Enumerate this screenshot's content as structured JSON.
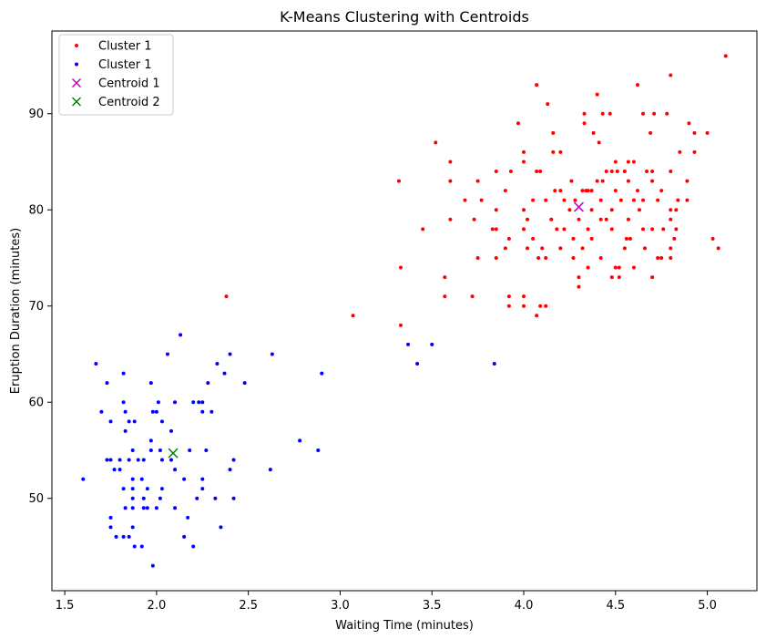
{
  "chart_data": {
    "type": "scatter",
    "title": "K-Means Clustering with Centroids",
    "xlabel": "Waiting Time (minutes)",
    "ylabel": "Eruption Duration (minutes)",
    "xlim": [
      1.43,
      5.27
    ],
    "ylim": [
      40.4,
      98.6
    ],
    "xticks": [
      1.5,
      2.0,
      2.5,
      3.0,
      3.5,
      4.0,
      4.5,
      5.0
    ],
    "xtick_labels": [
      "1.5",
      "2.0",
      "2.5",
      "3.0",
      "3.5",
      "4.0",
      "4.5",
      "5.0"
    ],
    "yticks": [
      50,
      60,
      70,
      80,
      90
    ],
    "ytick_labels": [
      "50",
      "60",
      "70",
      "80",
      "90"
    ],
    "grid": false,
    "legend_position": "top-left",
    "legend": [
      {
        "label": "Cluster 1",
        "marker": "dot",
        "color": "#ff0000"
      },
      {
        "label": "Cluster 1",
        "marker": "dot",
        "color": "#0000ff"
      },
      {
        "label": "Centroid 1",
        "marker": "x",
        "color": "#bf00bf"
      },
      {
        "label": "Centroid 2",
        "marker": "x",
        "color": "#008000"
      }
    ],
    "series": [
      {
        "name": "Cluster 1",
        "color": "#ff0000",
        "marker": "dot",
        "points": [
          [
            5.1,
            96
          ],
          [
            4.8,
            94
          ],
          [
            4.07,
            93
          ],
          [
            4.62,
            93
          ],
          [
            4.4,
            92
          ],
          [
            4.13,
            91
          ],
          [
            4.33,
            90
          ],
          [
            4.43,
            90
          ],
          [
            4.47,
            90
          ],
          [
            4.65,
            90
          ],
          [
            4.71,
            90
          ],
          [
            4.78,
            90
          ],
          [
            3.97,
            89
          ],
          [
            4.33,
            89
          ],
          [
            4.9,
            89
          ],
          [
            4.38,
            88
          ],
          [
            4.16,
            88
          ],
          [
            4.69,
            88
          ],
          [
            4.93,
            88
          ],
          [
            5.0,
            88
          ],
          [
            3.52,
            87
          ],
          [
            4.41,
            87
          ],
          [
            4.0,
            86
          ],
          [
            4.16,
            86
          ],
          [
            4.2,
            86
          ],
          [
            4.85,
            86
          ],
          [
            4.93,
            86
          ],
          [
            3.6,
            85
          ],
          [
            4.0,
            85
          ],
          [
            4.5,
            85
          ],
          [
            4.57,
            85
          ],
          [
            4.6,
            85
          ],
          [
            4.45,
            84
          ],
          [
            4.07,
            84
          ],
          [
            4.09,
            84
          ],
          [
            4.48,
            84
          ],
          [
            4.51,
            84
          ],
          [
            4.55,
            84
          ],
          [
            4.67,
            84
          ],
          [
            4.7,
            84
          ],
          [
            4.8,
            84
          ],
          [
            3.85,
            84
          ],
          [
            3.93,
            84
          ],
          [
            3.32,
            83
          ],
          [
            3.6,
            83
          ],
          [
            3.75,
            83
          ],
          [
            4.26,
            83
          ],
          [
            4.4,
            83
          ],
          [
            4.43,
            83
          ],
          [
            4.57,
            83
          ],
          [
            4.7,
            83
          ],
          [
            4.89,
            83
          ],
          [
            4.2,
            82
          ],
          [
            4.35,
            82
          ],
          [
            4.37,
            82
          ],
          [
            4.32,
            82
          ],
          [
            4.5,
            82
          ],
          [
            4.62,
            82
          ],
          [
            4.75,
            82
          ],
          [
            3.9,
            82
          ],
          [
            4.17,
            82
          ],
          [
            4.34,
            82
          ],
          [
            4.53,
            81
          ],
          [
            4.65,
            81
          ],
          [
            3.68,
            81
          ],
          [
            3.77,
            81
          ],
          [
            4.05,
            81
          ],
          [
            4.12,
            81
          ],
          [
            4.22,
            81
          ],
          [
            4.28,
            81
          ],
          [
            4.42,
            81
          ],
          [
            4.6,
            81
          ],
          [
            4.73,
            81
          ],
          [
            4.84,
            81
          ],
          [
            4.89,
            81
          ],
          [
            4.0,
            80
          ],
          [
            3.85,
            80
          ],
          [
            4.37,
            80
          ],
          [
            4.48,
            80
          ],
          [
            4.8,
            80
          ],
          [
            4.83,
            80
          ],
          [
            4.63,
            80
          ],
          [
            4.25,
            80
          ],
          [
            3.73,
            79
          ],
          [
            3.6,
            79
          ],
          [
            4.02,
            79
          ],
          [
            4.15,
            79
          ],
          [
            4.3,
            79
          ],
          [
            4.42,
            79
          ],
          [
            4.45,
            79
          ],
          [
            4.57,
            79
          ],
          [
            4.8,
            79
          ],
          [
            3.45,
            78
          ],
          [
            3.83,
            78
          ],
          [
            3.85,
            78
          ],
          [
            4.0,
            78
          ],
          [
            4.18,
            78
          ],
          [
            4.22,
            78
          ],
          [
            4.35,
            78
          ],
          [
            4.48,
            78
          ],
          [
            4.65,
            78
          ],
          [
            4.7,
            78
          ],
          [
            4.76,
            78
          ],
          [
            4.83,
            78
          ],
          [
            3.92,
            77
          ],
          [
            4.05,
            77
          ],
          [
            4.27,
            77
          ],
          [
            4.37,
            77
          ],
          [
            4.56,
            77
          ],
          [
            4.58,
            77
          ],
          [
            4.82,
            77
          ],
          [
            5.03,
            77
          ],
          [
            3.9,
            76
          ],
          [
            4.02,
            76
          ],
          [
            4.1,
            76
          ],
          [
            4.2,
            76
          ],
          [
            4.32,
            76
          ],
          [
            4.55,
            76
          ],
          [
            4.66,
            76
          ],
          [
            4.8,
            76
          ],
          [
            5.06,
            76
          ],
          [
            3.75,
            75
          ],
          [
            3.85,
            75
          ],
          [
            4.08,
            75
          ],
          [
            4.12,
            75
          ],
          [
            4.27,
            75
          ],
          [
            4.42,
            75
          ],
          [
            4.73,
            75
          ],
          [
            4.75,
            75
          ],
          [
            4.8,
            75
          ],
          [
            3.33,
            74
          ],
          [
            4.35,
            74
          ],
          [
            4.5,
            74
          ],
          [
            4.52,
            74
          ],
          [
            4.6,
            74
          ],
          [
            3.57,
            73
          ],
          [
            4.3,
            73
          ],
          [
            4.48,
            73
          ],
          [
            4.52,
            73
          ],
          [
            4.7,
            73
          ],
          [
            4.3,
            72
          ],
          [
            3.57,
            71
          ],
          [
            3.72,
            71
          ],
          [
            3.92,
            71
          ],
          [
            4.0,
            71
          ],
          [
            2.38,
            71
          ],
          [
            3.92,
            70
          ],
          [
            4.0,
            70
          ],
          [
            4.09,
            70
          ],
          [
            4.12,
            70
          ],
          [
            4.07,
            69
          ],
          [
            3.07,
            69
          ],
          [
            3.33,
            68
          ]
        ]
      },
      {
        "name": "Cluster 1",
        "color": "#0000ff",
        "marker": "dot",
        "points": [
          [
            2.13,
            67
          ],
          [
            1.67,
            64
          ],
          [
            2.06,
            65
          ],
          [
            2.4,
            65
          ],
          [
            2.63,
            65
          ],
          [
            3.37,
            66
          ],
          [
            3.5,
            66
          ],
          [
            3.42,
            64
          ],
          [
            3.84,
            64
          ],
          [
            2.33,
            64
          ],
          [
            1.82,
            63
          ],
          [
            2.37,
            63
          ],
          [
            2.9,
            63
          ],
          [
            1.73,
            62
          ],
          [
            1.97,
            62
          ],
          [
            2.28,
            62
          ],
          [
            2.48,
            62
          ],
          [
            1.82,
            60
          ],
          [
            2.01,
            60
          ],
          [
            2.1,
            60
          ],
          [
            2.2,
            60
          ],
          [
            2.23,
            60
          ],
          [
            2.25,
            60
          ],
          [
            1.7,
            59
          ],
          [
            1.83,
            59
          ],
          [
            1.98,
            59
          ],
          [
            2.0,
            59
          ],
          [
            2.25,
            59
          ],
          [
            2.3,
            59
          ],
          [
            1.75,
            58
          ],
          [
            1.85,
            58
          ],
          [
            1.88,
            58
          ],
          [
            2.03,
            58
          ],
          [
            2.08,
            57
          ],
          [
            1.83,
            57
          ],
          [
            2.78,
            56
          ],
          [
            1.97,
            56
          ],
          [
            1.87,
            55
          ],
          [
            1.97,
            55
          ],
          [
            2.02,
            55
          ],
          [
            2.18,
            55
          ],
          [
            2.27,
            55
          ],
          [
            2.88,
            55
          ],
          [
            1.73,
            54
          ],
          [
            1.75,
            54
          ],
          [
            1.8,
            54
          ],
          [
            1.85,
            54
          ],
          [
            1.9,
            54
          ],
          [
            1.93,
            54
          ],
          [
            2.03,
            54
          ],
          [
            2.08,
            54
          ],
          [
            2.42,
            54
          ],
          [
            1.77,
            53
          ],
          [
            1.8,
            53
          ],
          [
            2.1,
            53
          ],
          [
            2.4,
            53
          ],
          [
            2.62,
            53
          ],
          [
            1.87,
            52
          ],
          [
            1.92,
            52
          ],
          [
            2.15,
            52
          ],
          [
            2.25,
            52
          ],
          [
            1.6,
            52
          ],
          [
            1.82,
            51
          ],
          [
            1.87,
            51
          ],
          [
            1.95,
            51
          ],
          [
            2.03,
            51
          ],
          [
            2.25,
            51
          ],
          [
            1.93,
            50
          ],
          [
            1.87,
            50
          ],
          [
            2.02,
            50
          ],
          [
            2.22,
            50
          ],
          [
            2.32,
            50
          ],
          [
            2.42,
            50
          ],
          [
            1.83,
            49
          ],
          [
            1.87,
            49
          ],
          [
            1.93,
            49
          ],
          [
            1.95,
            49
          ],
          [
            2.0,
            49
          ],
          [
            2.1,
            49
          ],
          [
            1.75,
            48
          ],
          [
            2.17,
            48
          ],
          [
            1.75,
            47
          ],
          [
            1.87,
            47
          ],
          [
            2.35,
            47
          ],
          [
            1.78,
            46
          ],
          [
            1.82,
            46
          ],
          [
            1.85,
            46
          ],
          [
            2.15,
            46
          ],
          [
            1.88,
            45
          ],
          [
            1.92,
            45
          ],
          [
            2.2,
            45
          ],
          [
            1.98,
            43
          ]
        ]
      },
      {
        "name": "Centroid 1",
        "color": "#bf00bf",
        "marker": "x",
        "points": [
          [
            4.3,
            80.3
          ]
        ]
      },
      {
        "name": "Centroid 2",
        "color": "#008000",
        "marker": "x",
        "points": [
          [
            2.09,
            54.7
          ]
        ]
      }
    ]
  }
}
